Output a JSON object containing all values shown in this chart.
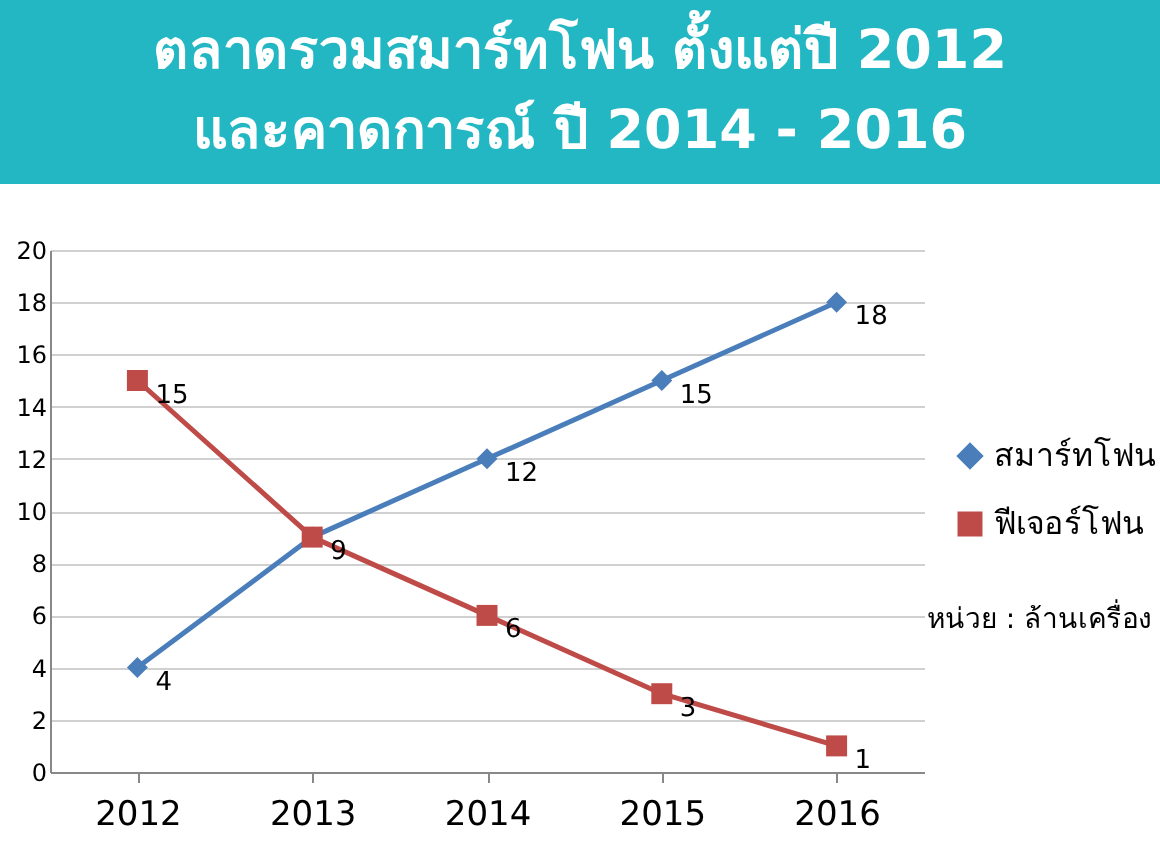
{
  "chart_data": {
    "type": "line",
    "title": [
      "ตลาดรวมสมาร์ทโฟน ตั้งแต่ปี 2012",
      "และคาดการณ์ ปี 2014 - 2016"
    ],
    "categories": [
      "2012",
      "2013",
      "2014",
      "2015",
      "2016"
    ],
    "series": [
      {
        "name": "สมาร์ทโฟน",
        "color": "#4a7ebb",
        "marker": "diamond",
        "values": [
          4,
          9,
          12,
          15,
          18
        ],
        "value_labels": [
          "4",
          "9",
          "12",
          "15",
          "18"
        ]
      },
      {
        "name": "ฟีเจอร์โฟน",
        "color": "#be4b48",
        "marker": "square",
        "values": [
          15,
          9,
          6,
          3,
          1
        ],
        "value_labels": [
          "15",
          null,
          "6",
          "3",
          "1"
        ]
      }
    ],
    "ylim": [
      0,
      20
    ],
    "yticks": [
      0,
      2,
      4,
      6,
      8,
      10,
      12,
      14,
      16,
      18,
      20
    ],
    "grid": "y",
    "legend": "right",
    "line_style": "solid",
    "annotations": [
      "หน่วย : ล้านเครื่อง"
    ]
  }
}
